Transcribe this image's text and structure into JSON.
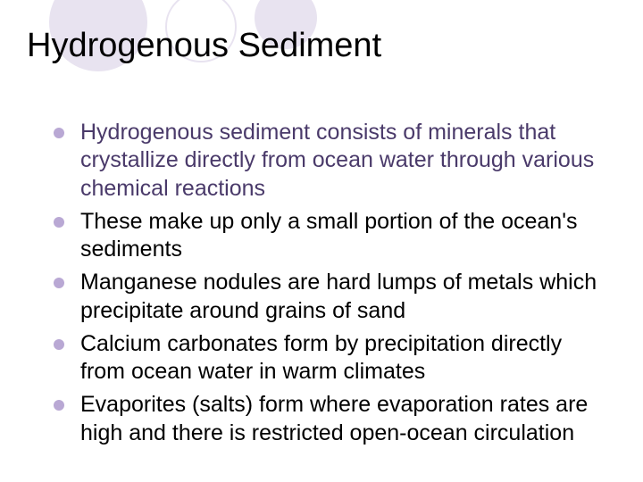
{
  "slide": {
    "title": "Hydrogenous Sediment",
    "bullets": [
      "Hydrogenous sediment consists of minerals that crystallize directly from ocean water through various chemical reactions",
      "These make up only a small portion of the ocean's sediments",
      "Manganese nodules are hard lumps of metals which precipitate around grains of sand",
      "Calcium carbonates form by precipitation directly from ocean water in warm climates",
      "Evaporites (salts) form where evaporation rates are high and there is restricted open-ocean circulation"
    ]
  },
  "styling": {
    "background_color": "#ffffff",
    "title_color": "#000000",
    "title_fontsize": 38,
    "bullet_fontsize": 25,
    "bullet_text_color": "#000000",
    "first_bullet_text_color": "#4a3a6a",
    "bullet_dot_color": "#b9a8d4",
    "bullet_dot_size": 12,
    "decorative_circle_fill": "#e8e3f0",
    "decorative_circle_outline": "#e8e3f0"
  }
}
